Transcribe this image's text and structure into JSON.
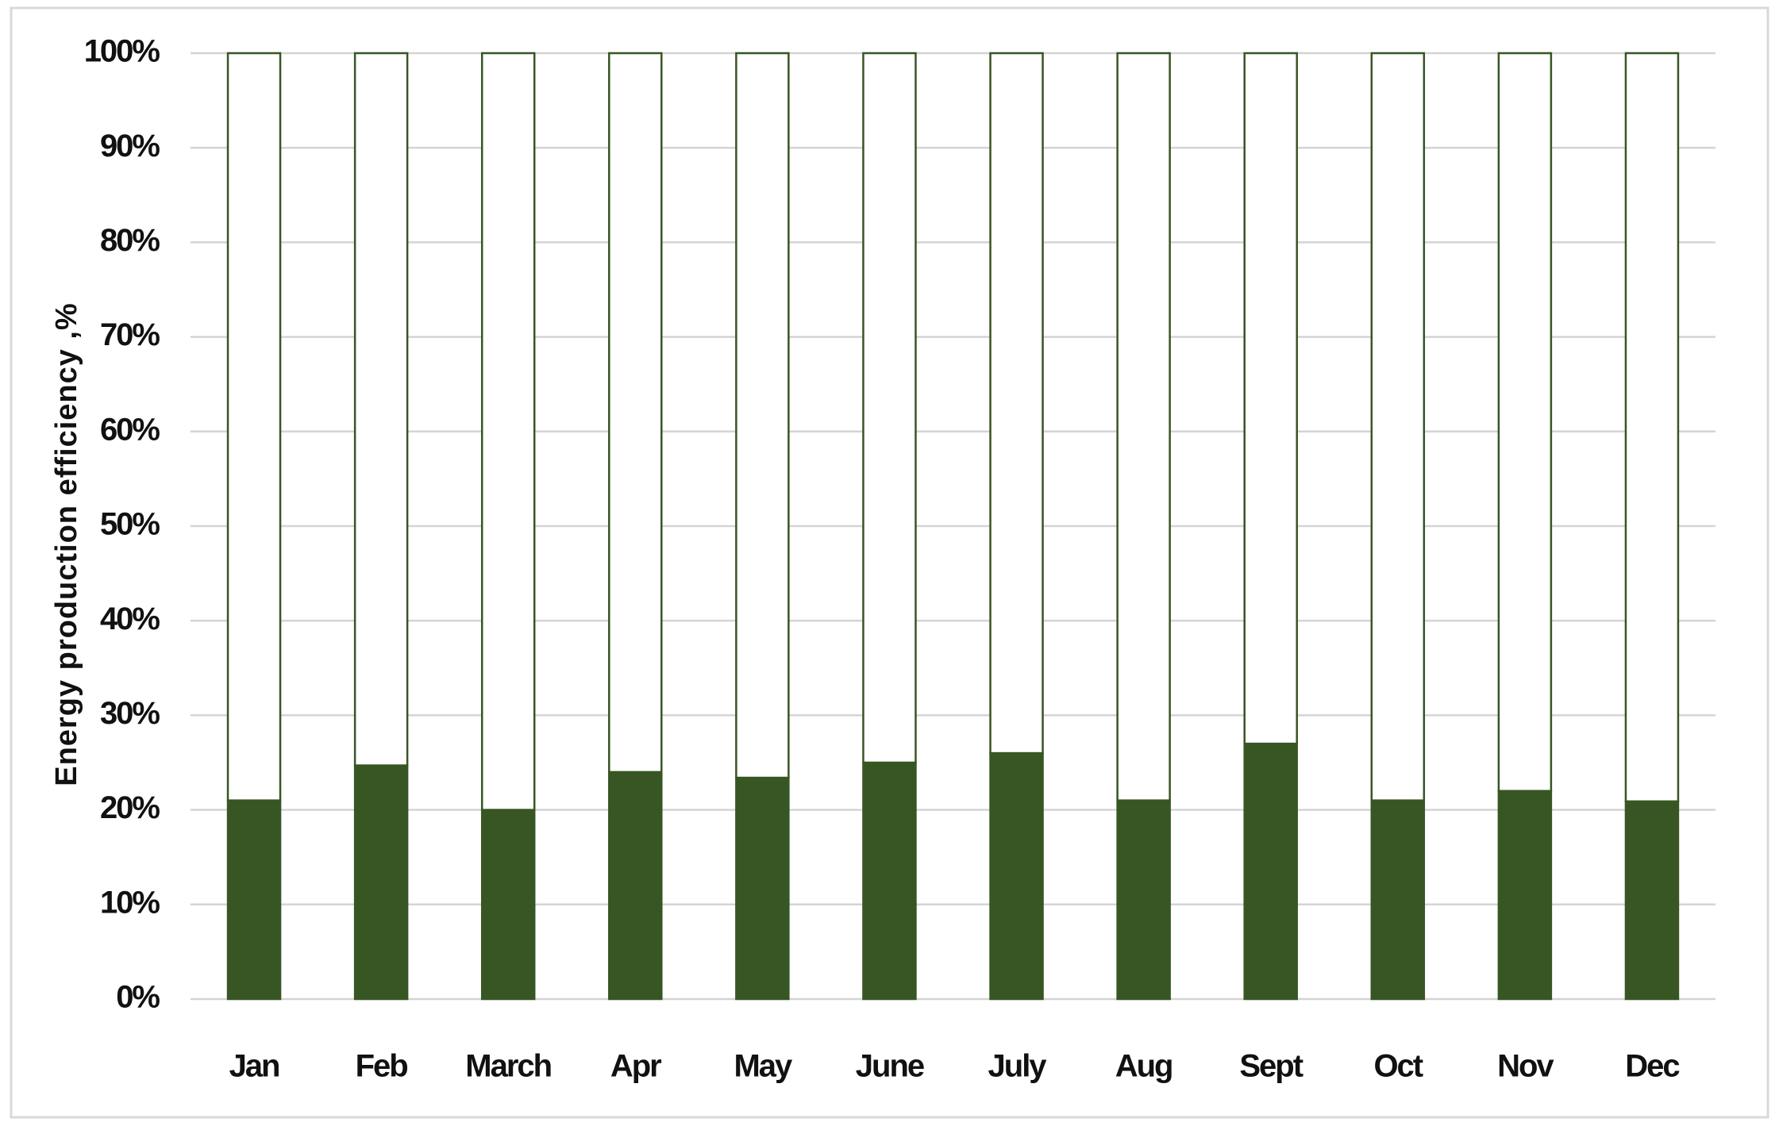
{
  "chart_data": {
    "type": "bar",
    "stacked": true,
    "y_label": "Energy production efficiency ,%",
    "categories": [
      "Jan",
      "Feb",
      "March",
      "Apr",
      "May",
      "June",
      "July",
      "Aug",
      "Sept",
      "Oct",
      "Nov",
      "Dec"
    ],
    "series": [
      {
        "color": "#375623",
        "values": [
          21,
          24.7,
          20,
          24,
          23.4,
          25,
          26,
          21,
          27,
          21,
          22,
          20.9
        ]
      },
      {
        "color": "#ffffff",
        "values": [
          79,
          75.3,
          80,
          76,
          76.6,
          75,
          74,
          79,
          73,
          79,
          78,
          79.1
        ]
      }
    ],
    "edgecolor": "#375623",
    "ylim": [
      0,
      100
    ],
    "yticks": [
      {
        "value": 0,
        "label": "0%"
      },
      {
        "value": 10,
        "label": "10%"
      },
      {
        "value": 20,
        "label": "20%"
      },
      {
        "value": 30,
        "label": "30%"
      },
      {
        "value": 40,
        "label": "40%"
      },
      {
        "value": 50,
        "label": "50%"
      },
      {
        "value": 60,
        "label": "60%"
      },
      {
        "value": 70,
        "label": "70%"
      },
      {
        "value": 80,
        "label": "80%"
      },
      {
        "value": 90,
        "label": "90%"
      },
      {
        "value": 100,
        "label": "100%"
      }
    ],
    "grid": true
  }
}
